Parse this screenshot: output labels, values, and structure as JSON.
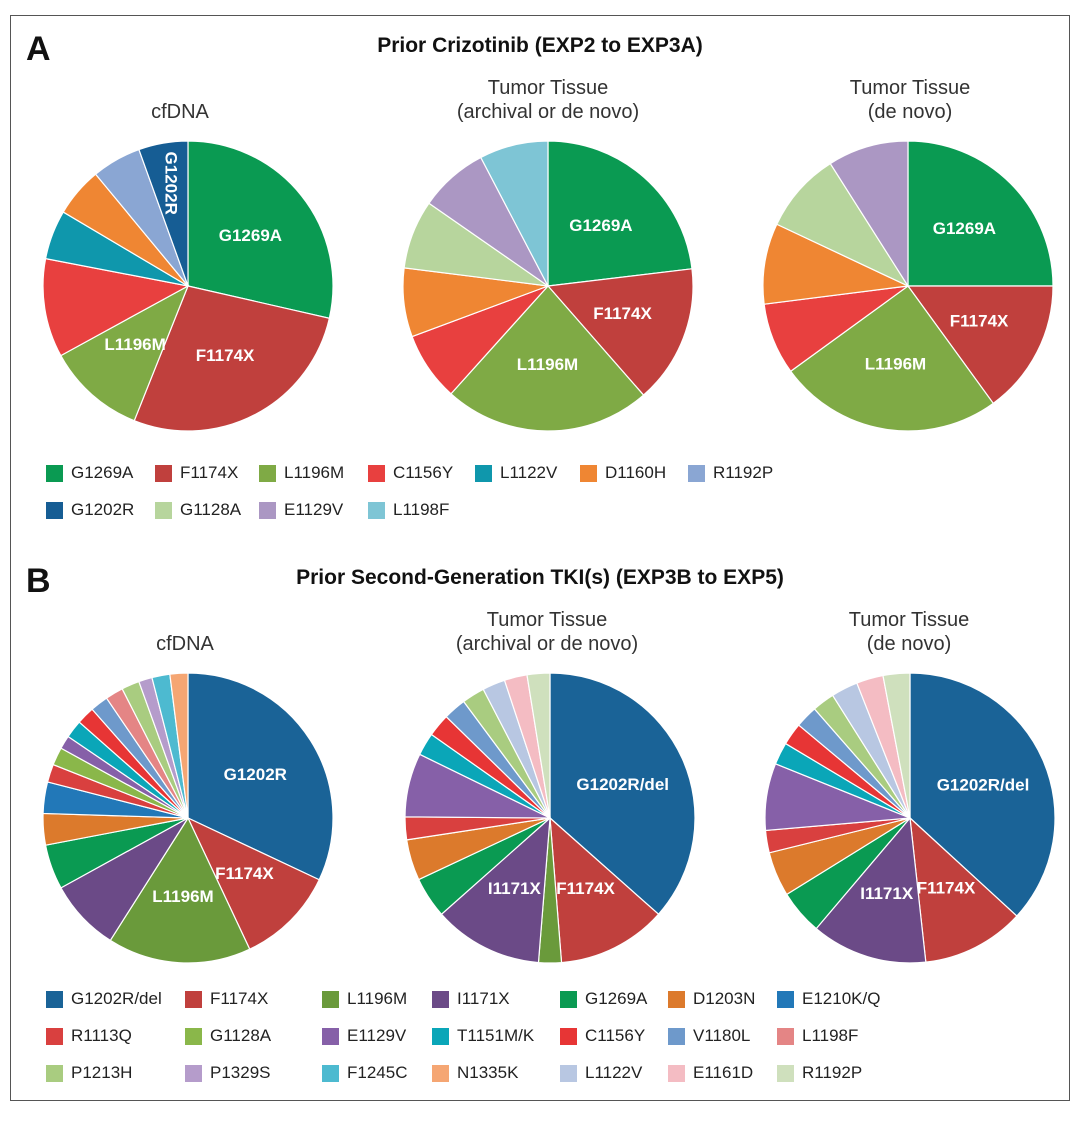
{
  "panels": {
    "A": {
      "letter": "A",
      "title": "Prior Crizotinib (EXP2 to EXP3A)"
    },
    "B": {
      "letter": "B",
      "title": "Prior Second-Generation TKI(s) (EXP3B to EXP5)"
    }
  },
  "colors": {
    "G1269A": "#0a9a52",
    "F1174X": "#c0403d",
    "L1196M": "#7faa45",
    "C1156Y": "#e8403f",
    "L1122V": "#0f97ac",
    "D1160H": "#ef8633",
    "R1192P": "#8aa6d3",
    "G1202R": "#165d94",
    "G1128A": "#b7d59d",
    "E1129V": "#ab97c3",
    "L1198F": "#7ec5d5"
  },
  "colors_b": {
    "G1202R/del": "#1a6397",
    "F1174X": "#c0403d",
    "L1196M": "#6a9a3b",
    "I1171X": "#6b4a87",
    "G1269A": "#0a9a52",
    "D1203N": "#dc7a2c",
    "E1210K/Q": "#2278b8",
    "R1113Q": "#d9403f",
    "G1128A": "#8ab74a",
    "E1129V": "#8660a8",
    "T1151M/K": "#0aa6b8",
    "C1156Y": "#e73535",
    "V1180L": "#6e99cb",
    "L1198F": "#e48585",
    "P1213H": "#a9cc80",
    "P1329S": "#b59ccb",
    "F1245C": "#4dbad0",
    "N1335K": "#f5a673",
    "L1122V": "#b8c7e2",
    "E1161D": "#f4bcc3",
    "R1192P": "#cfe0bd"
  },
  "chart_data": [
    {
      "type": "pie",
      "panel": "A",
      "title": "cfDNA",
      "slices": [
        {
          "label": "G1269A",
          "value": 26,
          "text": "G1269A"
        },
        {
          "label": "F1174X",
          "value": 25,
          "text": "F1174X"
        },
        {
          "label": "L1196M",
          "value": 10,
          "text": "L1196M"
        },
        {
          "label": "C1156Y",
          "value": 10,
          "text": ""
        },
        {
          "label": "L1122V",
          "value": 5,
          "text": ""
        },
        {
          "label": "D1160H",
          "value": 5,
          "text": ""
        },
        {
          "label": "R1192P",
          "value": 5,
          "text": ""
        },
        {
          "label": "G1202R",
          "value": 5,
          "text": "G1202R"
        }
      ]
    },
    {
      "type": "pie",
      "panel": "A",
      "title_lines": [
        "Tumor Tissue",
        "(archival or de novo)"
      ],
      "slices": [
        {
          "label": "G1269A",
          "value": 21.4,
          "text": "G1269A"
        },
        {
          "label": "F1174X",
          "value": 14.3,
          "text": "F1174X"
        },
        {
          "label": "L1196M",
          "value": 21.4,
          "text": "L1196M"
        },
        {
          "label": "C1156Y",
          "value": 7.1,
          "text": ""
        },
        {
          "label": "D1160H",
          "value": 7.1,
          "text": ""
        },
        {
          "label": "G1128A",
          "value": 7.1,
          "text": ""
        },
        {
          "label": "E1129V",
          "value": 7.1,
          "text": ""
        },
        {
          "label": "L1198F",
          "value": 7.1,
          "text": ""
        }
      ]
    },
    {
      "type": "pie",
      "panel": "A",
      "title_lines": [
        "Tumor Tissue",
        "(de novo)"
      ],
      "slices": [
        {
          "label": "G1269A",
          "value": 25,
          "text": "G1269A"
        },
        {
          "label": "F1174X",
          "value": 15,
          "text": "F1174X"
        },
        {
          "label": "L1196M",
          "value": 25,
          "text": "L1196M"
        },
        {
          "label": "C1156Y",
          "value": 8,
          "text": ""
        },
        {
          "label": "D1160H",
          "value": 9,
          "text": ""
        },
        {
          "label": "G1128A",
          "value": 9,
          "text": ""
        },
        {
          "label": "E1129V",
          "value": 9,
          "text": ""
        }
      ]
    },
    {
      "type": "pie",
      "panel": "B",
      "title": "cfDNA",
      "slices": [
        {
          "label": "G1202R/del",
          "value": 32,
          "text": "G1202R"
        },
        {
          "label": "F1174X",
          "value": 11,
          "text": "F1174X"
        },
        {
          "label": "L1196M",
          "value": 16,
          "text": "L1196M"
        },
        {
          "label": "I1171X",
          "value": 8,
          "text": ""
        },
        {
          "label": "G1269A",
          "value": 5,
          "text": ""
        },
        {
          "label": "D1203N",
          "value": 3.5,
          "text": ""
        },
        {
          "label": "E1210K/Q",
          "value": 3.5,
          "text": ""
        },
        {
          "label": "R1113Q",
          "value": 2,
          "text": ""
        },
        {
          "label": "G1128A",
          "value": 2,
          "text": ""
        },
        {
          "label": "E1129V",
          "value": 1.5,
          "text": ""
        },
        {
          "label": "T1151M/K",
          "value": 2,
          "text": ""
        },
        {
          "label": "C1156Y",
          "value": 2,
          "text": ""
        },
        {
          "label": "V1180L",
          "value": 2,
          "text": ""
        },
        {
          "label": "L1198F",
          "value": 2,
          "text": ""
        },
        {
          "label": "P1213H",
          "value": 2,
          "text": ""
        },
        {
          "label": "P1329S",
          "value": 1.5,
          "text": ""
        },
        {
          "label": "F1245C",
          "value": 2,
          "text": ""
        },
        {
          "label": "N1335K",
          "value": 2,
          "text": ""
        }
      ]
    },
    {
      "type": "pie",
      "panel": "B",
      "title_lines": [
        "Tumor Tissue",
        "(archival or de novo)"
      ],
      "slices": [
        {
          "label": "G1202R/del",
          "value": 36,
          "text": "G1202R/del"
        },
        {
          "label": "F1174X",
          "value": 12,
          "text": "F1174X"
        },
        {
          "label": "L1196M",
          "value": 2.5,
          "text": ""
        },
        {
          "label": "I1171X",
          "value": 12,
          "text": "I1171X"
        },
        {
          "label": "G1269A",
          "value": 4.5,
          "text": ""
        },
        {
          "label": "D1203N",
          "value": 4.5,
          "text": ""
        },
        {
          "label": "R1113Q",
          "value": 2.5,
          "text": ""
        },
        {
          "label": "E1129V",
          "value": 7,
          "text": ""
        },
        {
          "label": "T1151M/K",
          "value": 2.5,
          "text": ""
        },
        {
          "label": "C1156Y",
          "value": 2.5,
          "text": ""
        },
        {
          "label": "V1180L",
          "value": 2.5,
          "text": ""
        },
        {
          "label": "P1213H",
          "value": 2.5,
          "text": ""
        },
        {
          "label": "L1122V",
          "value": 2.5,
          "text": ""
        },
        {
          "label": "E1161D",
          "value": 2.5,
          "text": ""
        },
        {
          "label": "R1192P",
          "value": 2.5,
          "text": ""
        }
      ]
    },
    {
      "type": "pie",
      "panel": "B",
      "title_lines": [
        "Tumor Tissue",
        "(de novo)"
      ],
      "slices": [
        {
          "label": "G1202R/del",
          "value": 37,
          "text": "G1202R/del"
        },
        {
          "label": "F1174X",
          "value": 11.5,
          "text": "F1174X"
        },
        {
          "label": "I1171X",
          "value": 13,
          "text": "I1171X"
        },
        {
          "label": "G1269A",
          "value": 5,
          "text": ""
        },
        {
          "label": "D1203N",
          "value": 5,
          "text": ""
        },
        {
          "label": "R1113Q",
          "value": 2.5,
          "text": ""
        },
        {
          "label": "E1129V",
          "value": 7.5,
          "text": ""
        },
        {
          "label": "T1151M/K",
          "value": 2.5,
          "text": ""
        },
        {
          "label": "C1156Y",
          "value": 2.5,
          "text": ""
        },
        {
          "label": "V1180L",
          "value": 2.5,
          "text": ""
        },
        {
          "label": "P1213H",
          "value": 2.5,
          "text": ""
        },
        {
          "label": "L1122V",
          "value": 3,
          "text": ""
        },
        {
          "label": "E1161D",
          "value": 3,
          "text": ""
        },
        {
          "label": "R1192P",
          "value": 3,
          "text": ""
        }
      ]
    }
  ],
  "legend_a": [
    "G1269A",
    "F1174X",
    "L1196M",
    "C1156Y",
    "L1122V",
    "D1160H",
    "R1192P",
    "G1202R",
    "G1128A",
    "E1129V",
    "L1198F"
  ],
  "legend_b": [
    "G1202R/del",
    "F1174X",
    "L1196M",
    "I1171X",
    "G1269A",
    "D1203N",
    "E1210K/Q",
    "R1113Q",
    "G1128A",
    "E1129V",
    "T1151M/K",
    "C1156Y",
    "V1180L",
    "L1198F",
    "P1213H",
    "P1329S",
    "F1245C",
    "N1335K",
    "L1122V",
    "E1161D",
    "R1192P"
  ]
}
